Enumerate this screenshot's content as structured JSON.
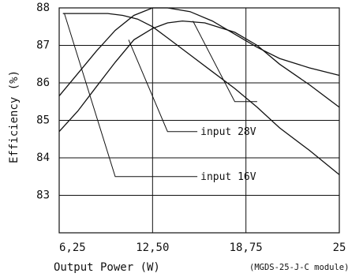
{
  "chart_data": {
    "type": "line",
    "xlabel": "Output Power (W)",
    "ylabel": "Efficiency (%)",
    "note": "(MGDS-25-J-C module)",
    "xlim": [
      6.25,
      25
    ],
    "ylim": [
      82,
      88
    ],
    "x_ticks": [
      {
        "value": 6.25,
        "label": "6,25"
      },
      {
        "value": 12.5,
        "label": "12,50"
      },
      {
        "value": 18.75,
        "label": "18,75"
      },
      {
        "value": 25,
        "label": "25"
      }
    ],
    "y_ticks": [
      {
        "value": 88,
        "label": "88"
      },
      {
        "value": 87,
        "label": "87"
      },
      {
        "value": 86,
        "label": "86"
      },
      {
        "value": 85,
        "label": "85"
      },
      {
        "value": 84,
        "label": "84"
      },
      {
        "value": 83,
        "label": "83"
      }
    ],
    "grid": true,
    "series": [
      {
        "points": [
          [
            6.25,
            85.65
          ],
          [
            7.5,
            86.25
          ],
          [
            8.75,
            86.85
          ],
          [
            10.0,
            87.4
          ],
          [
            11.25,
            87.8
          ],
          [
            12.5,
            88.0
          ],
          [
            13.5,
            88.0
          ],
          [
            15.0,
            87.9
          ],
          [
            16.5,
            87.65
          ],
          [
            18.0,
            87.3
          ],
          [
            19.5,
            86.95
          ],
          [
            21.0,
            86.65
          ],
          [
            23.0,
            86.4
          ],
          [
            25.0,
            86.2
          ]
        ]
      },
      {
        "points": [
          [
            6.25,
            84.7
          ],
          [
            7.5,
            85.25
          ],
          [
            8.75,
            85.9
          ],
          [
            10.0,
            86.55
          ],
          [
            11.25,
            87.15
          ],
          [
            12.5,
            87.45
          ],
          [
            13.5,
            87.6
          ],
          [
            14.5,
            87.65
          ],
          [
            16.0,
            87.6
          ],
          [
            18.0,
            87.35
          ],
          [
            19.5,
            87.0
          ],
          [
            21.0,
            86.5
          ],
          [
            23.0,
            85.95
          ],
          [
            25.0,
            85.35
          ]
        ]
      },
      {
        "points": [
          [
            6.5,
            87.85
          ],
          [
            8.0,
            87.85
          ],
          [
            9.5,
            87.85
          ],
          [
            10.5,
            87.8
          ],
          [
            11.5,
            87.7
          ],
          [
            12.5,
            87.5
          ],
          [
            13.5,
            87.2
          ],
          [
            15.0,
            86.75
          ],
          [
            16.5,
            86.3
          ],
          [
            18.0,
            85.85
          ],
          [
            19.5,
            85.35
          ],
          [
            21.0,
            84.8
          ],
          [
            23.0,
            84.2
          ],
          [
            25.0,
            83.55
          ]
        ]
      }
    ],
    "annotations": [
      {
        "text": "input 28V",
        "anchor": [
          10.9,
          87.15
        ],
        "elbow": [
          13.5,
          84.7
        ],
        "end": [
          15.5,
          84.7
        ]
      },
      {
        "text": "input 16V",
        "anchor": [
          6.6,
          87.85
        ],
        "elbow": [
          10.0,
          83.5
        ],
        "end": [
          15.5,
          83.5
        ]
      },
      {
        "text": "",
        "anchor": [
          15.2,
          87.65
        ],
        "elbow": [
          18.0,
          85.5
        ],
        "end": [
          19.5,
          85.5
        ]
      }
    ]
  }
}
